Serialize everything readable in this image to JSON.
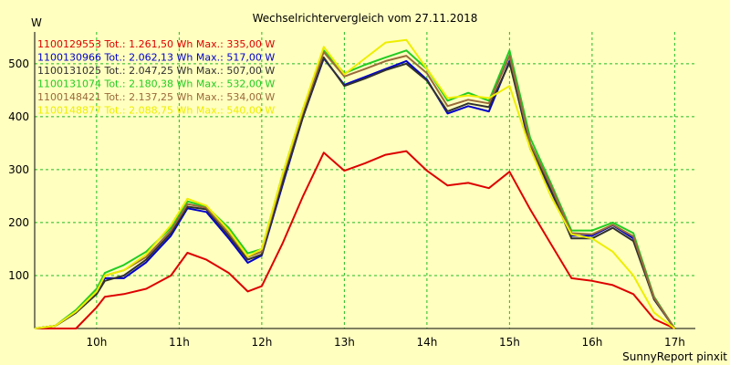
{
  "chart_data": {
    "type": "line",
    "title": "Wechselrichtervergleich vom 27.11.2018",
    "ylabel": "W",
    "xlabel": "",
    "footer": "SunnyReport pinxit",
    "xlim": [
      9.25,
      17.25
    ],
    "ylim": [
      0,
      560
    ],
    "grid": true,
    "legend_position": "top-left",
    "x_ticks": [
      10,
      11,
      12,
      13,
      14,
      15,
      16,
      17
    ],
    "x_tick_labels": [
      "10h",
      "11h",
      "12h",
      "13h",
      "14h",
      "15h",
      "16h",
      "17h"
    ],
    "y_ticks": [
      100,
      200,
      300,
      400,
      500
    ],
    "y_tick_labels": [
      "100",
      "200",
      "300",
      "400",
      "500"
    ],
    "x": [
      9.25,
      9.5,
      9.75,
      10.0,
      10.1,
      10.33,
      10.6,
      10.9,
      11.1,
      11.33,
      11.6,
      11.83,
      12.0,
      12.25,
      12.5,
      12.75,
      13.0,
      13.25,
      13.5,
      13.75,
      14.0,
      14.25,
      14.5,
      14.75,
      15.0,
      15.25,
      15.5,
      15.75,
      16.0,
      16.25,
      16.5,
      16.75,
      17.0
    ],
    "series": [
      {
        "name": "1100129553",
        "legend": "1100129553 Tot.: 1.261,50 Wh Max.: 335,00 W",
        "color": "#dd0000",
        "values": [
          0,
          0,
          0,
          40,
          60,
          65,
          75,
          100,
          143,
          130,
          105,
          70,
          80,
          160,
          250,
          332,
          298,
          312,
          328,
          335,
          298,
          270,
          275,
          265,
          296,
          225,
          160,
          95,
          90,
          82,
          65,
          18,
          0
        ]
      },
      {
        "name": "1100130966",
        "legend": "1100130966 Tot.: 2.062,13 Wh Max.: 517,00 W",
        "color": "#0000cc",
        "values": [
          0,
          5,
          30,
          70,
          95,
          95,
          125,
          175,
          227,
          220,
          170,
          124,
          138,
          270,
          400,
          510,
          460,
          475,
          490,
          505,
          470,
          406,
          420,
          410,
          505,
          340,
          260,
          175,
          175,
          195,
          170,
          55,
          0
        ]
      },
      {
        "name": "1100131025",
        "legend": "1100131025 Tot.: 2.047,25 Wh Max.: 507,00 W",
        "color": "#303030",
        "values": [
          0,
          5,
          30,
          65,
          90,
          100,
          130,
          180,
          230,
          225,
          175,
          130,
          140,
          275,
          400,
          512,
          458,
          472,
          488,
          500,
          468,
          410,
          425,
          418,
          502,
          345,
          262,
          170,
          170,
          190,
          165,
          55,
          0
        ]
      },
      {
        "name": "1100131074",
        "legend": "1100131074 Tot.: 2.180,38 Wh Max.: 532,00 W",
        "color": "#22cc22",
        "values": [
          0,
          5,
          35,
          75,
          105,
          120,
          145,
          190,
          240,
          230,
          190,
          142,
          150,
          290,
          415,
          525,
          482,
          498,
          512,
          525,
          490,
          430,
          445,
          430,
          525,
          360,
          275,
          185,
          185,
          200,
          180,
          60,
          0
        ]
      },
      {
        "name": "1100148421",
        "legend": "1100148421 Tot.: 2.137,25 Wh Max.: 534,00 W",
        "color": "#9a6a3a",
        "values": [
          0,
          5,
          32,
          70,
          100,
          110,
          135,
          185,
          235,
          228,
          180,
          135,
          145,
          285,
          410,
          522,
          476,
          490,
          505,
          515,
          482,
          420,
          432,
          425,
          515,
          350,
          270,
          180,
          178,
          196,
          174,
          58,
          0
        ]
      },
      {
        "name": "1100148877",
        "legend": "1100148877 Tot.: 2.088,75 Wh Max.: 540,00 W",
        "color": "#eeee00",
        "values": [
          0,
          5,
          32,
          70,
          100,
          110,
          140,
          195,
          245,
          232,
          185,
          136,
          150,
          290,
          415,
          532,
          480,
          510,
          540,
          545,
          490,
          435,
          440,
          435,
          458,
          340,
          250,
          178,
          170,
          145,
          100,
          30,
          0
        ]
      }
    ]
  }
}
